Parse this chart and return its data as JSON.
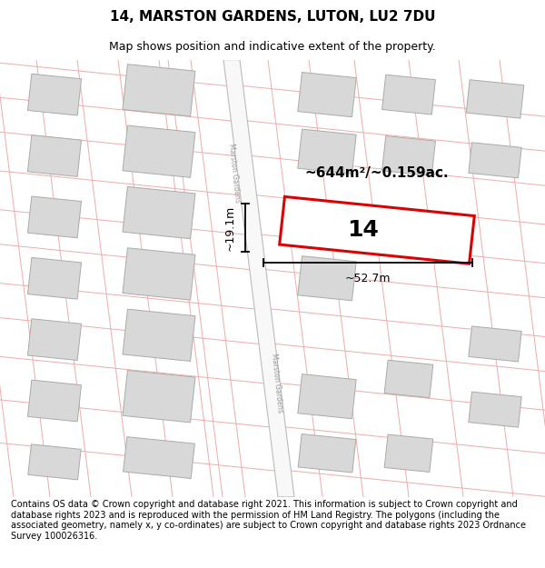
{
  "title": "14, MARSTON GARDENS, LUTON, LU2 7DU",
  "subtitle": "Map shows position and indicative extent of the property.",
  "footer": "Contains OS data © Crown copyright and database right 2021. This information is subject to Crown copyright and database rights 2023 and is reproduced with the permission of HM Land Registry. The polygons (including the associated geometry, namely x, y co-ordinates) are subject to Crown copyright and database rights 2023 Ordnance Survey 100026316.",
  "bg_color": "#ffffff",
  "map_bg": "#ffffff",
  "road_color": "#ffffff",
  "road_border": "#bbbbbb",
  "block_color": "#d8d8d8",
  "block_outline": "#aaaaaa",
  "line_color": "#f0aaaa",
  "highlight_color": "#dd0000",
  "area_label": "~644m²/~0.159ac.",
  "width_label": "~52.7m",
  "height_label": "~19.1m",
  "property_number": "14",
  "title_fontsize": 11,
  "subtitle_fontsize": 9,
  "footer_fontsize": 7.0,
  "road_label": "Marston Gardens"
}
